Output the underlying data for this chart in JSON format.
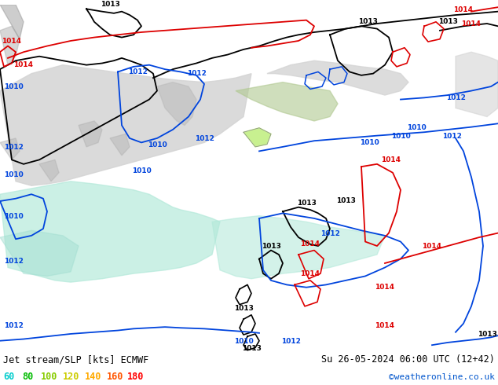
{
  "title_left": "Jet stream/SLP [kts] ECMWF",
  "title_right": "Su 26-05-2024 06:00 UTC (12+42)",
  "credit": "©weatheronline.co.uk",
  "legend_values": [
    60,
    80,
    100,
    120,
    140,
    160,
    180
  ],
  "legend_colors": [
    "#00cccc",
    "#00bb00",
    "#88cc00",
    "#cccc00",
    "#ffaa00",
    "#ff5500",
    "#ff0000"
  ],
  "bg_map": "#c8f090",
  "sea_color": "#d4d4d4",
  "jet_color": "#b0e8d8",
  "land_light": "#d8f0b0",
  "bottom_bg": "#ffffff",
  "top_strip": "#88cc44",
  "top_orange": "#ffaa00",
  "bk": "#000000",
  "bl": "#0044dd",
  "rd": "#dd0000",
  "fig_width": 6.34,
  "fig_height": 4.9,
  "dpi": 100
}
